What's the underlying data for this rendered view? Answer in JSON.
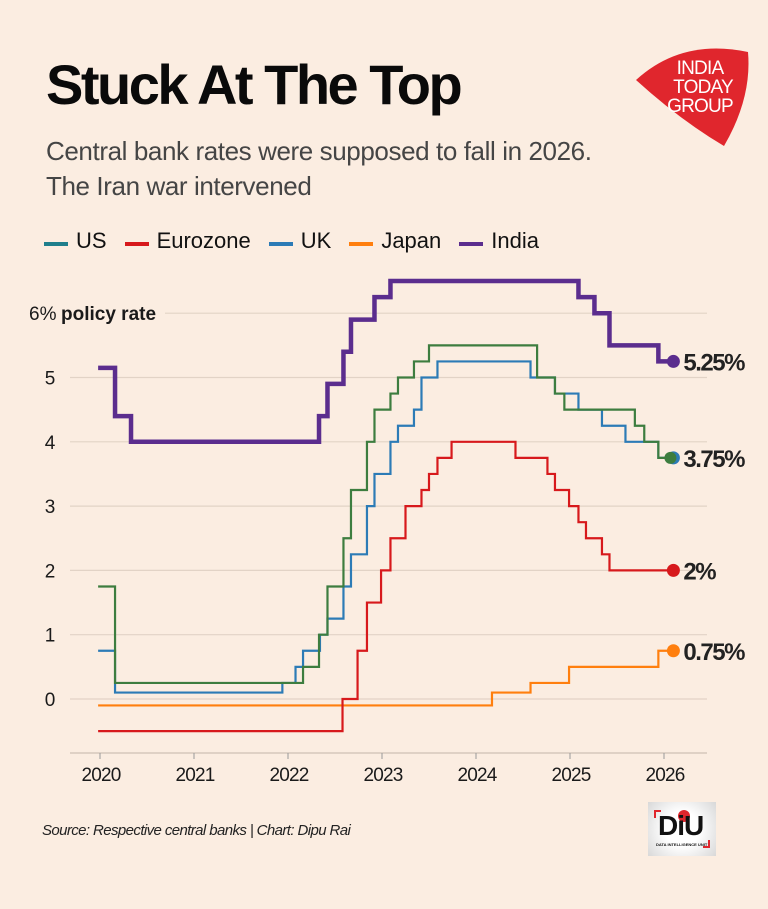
{
  "header": {
    "title": "Stuck At The Top",
    "subtitle_line1": "Central bank rates were supposed to fall in 2026.",
    "subtitle_line2": "The Iran war intervened",
    "logo_lines": [
      "INDIA",
      "TODAY",
      "GROUP"
    ],
    "logo_color": "#e0262d"
  },
  "footer": {
    "source": "Source: Respective central banks | Chart: Dipu Rai",
    "badge_text": "DiU",
    "badge_subtext": "DATA INTELLIGENCE UNIT"
  },
  "chart_data": {
    "type": "line",
    "step": true,
    "title": "Stuck At The Top",
    "ylabel": "6% policy rate",
    "xlabel": "",
    "xlim": [
      2019.9,
      2026.5
    ],
    "ylim": [
      -0.8,
      6.6
    ],
    "x_ticks": [
      2020,
      2021,
      2022,
      2023,
      2024,
      2025,
      2026
    ],
    "x_tick_labels": [
      "2020",
      "2021",
      "2022",
      "2023",
      "2024",
      "2025",
      "2026"
    ],
    "y_ticks": [
      0,
      1,
      2,
      3,
      4,
      5,
      6
    ],
    "y_tick_labels": [
      "0",
      "1",
      "2",
      "3",
      "4",
      "5",
      "6%"
    ],
    "y_top_label_suffix": "policy rate",
    "grid": true,
    "legend_position": "top-left",
    "legend": [
      {
        "name": "US",
        "color": "#1f7f8c"
      },
      {
        "name": "Eurozone",
        "color": "#d7191c"
      },
      {
        "name": "UK",
        "color": "#2c7bb6"
      },
      {
        "name": "Japan",
        "color": "#ff7f0e"
      },
      {
        "name": "India",
        "color": "#5b2d8e"
      }
    ],
    "series": [
      {
        "name": "India",
        "color": "#5b2d8e",
        "line_color": "#5b2d8e",
        "width": "thick",
        "end_label": "5.25%",
        "end_x": 2026.1,
        "steps": [
          [
            2019.98,
            5.15
          ],
          [
            2020.16,
            4.4
          ],
          [
            2020.33,
            4.0
          ],
          [
            2022.33,
            4.4
          ],
          [
            2022.42,
            4.9
          ],
          [
            2022.59,
            5.4
          ],
          [
            2022.67,
            5.9
          ],
          [
            2022.92,
            6.25
          ],
          [
            2023.09,
            6.5
          ],
          [
            2025.09,
            6.25
          ],
          [
            2025.26,
            6.0
          ],
          [
            2025.42,
            5.5
          ],
          [
            2025.94,
            5.25
          ]
        ]
      },
      {
        "name": "US",
        "color": "#1f7f8c",
        "line_color": "#3d7d3f",
        "width": "thin",
        "end_label": "3.75%",
        "end_x": 2026.1,
        "steps": [
          [
            2019.98,
            1.75
          ],
          [
            2020.16,
            0.25
          ],
          [
            2022.16,
            0.5
          ],
          [
            2022.33,
            1.0
          ],
          [
            2022.42,
            1.75
          ],
          [
            2022.59,
            2.5
          ],
          [
            2022.67,
            3.25
          ],
          [
            2022.84,
            4.0
          ],
          [
            2022.92,
            4.5
          ],
          [
            2023.09,
            4.75
          ],
          [
            2023.17,
            5.0
          ],
          [
            2023.34,
            5.25
          ],
          [
            2023.5,
            5.5
          ],
          [
            2024.65,
            5.0
          ],
          [
            2024.84,
            4.75
          ],
          [
            2024.94,
            4.5
          ],
          [
            2025.69,
            4.25
          ],
          [
            2025.79,
            4.0
          ],
          [
            2025.94,
            3.75
          ]
        ]
      },
      {
        "name": "UK",
        "color": "#2c7bb6",
        "line_color": "#2c7bb6",
        "width": "thin",
        "end_label": "3.75%",
        "end_x": 2026.1,
        "steps": [
          [
            2019.98,
            0.75
          ],
          [
            2020.16,
            0.1
          ],
          [
            2021.94,
            0.25
          ],
          [
            2022.08,
            0.5
          ],
          [
            2022.16,
            0.75
          ],
          [
            2022.34,
            1.0
          ],
          [
            2022.42,
            1.25
          ],
          [
            2022.59,
            1.75
          ],
          [
            2022.67,
            2.25
          ],
          [
            2022.84,
            3.0
          ],
          [
            2022.92,
            3.5
          ],
          [
            2023.09,
            4.0
          ],
          [
            2023.17,
            4.25
          ],
          [
            2023.34,
            4.5
          ],
          [
            2023.42,
            5.0
          ],
          [
            2023.59,
            5.25
          ],
          [
            2024.58,
            5.0
          ],
          [
            2024.84,
            4.75
          ],
          [
            2025.09,
            4.5
          ],
          [
            2025.34,
            4.25
          ],
          [
            2025.59,
            4.0
          ],
          [
            2025.94,
            3.75
          ]
        ]
      },
      {
        "name": "Eurozone",
        "color": "#d7191c",
        "line_color": "#d7191c",
        "width": "thin",
        "end_label": "2%",
        "end_x": 2026.1,
        "steps": [
          [
            2019.98,
            -0.5
          ],
          [
            2020.0,
            -0.5
          ],
          [
            2022.58,
            0.0
          ],
          [
            2022.74,
            0.75
          ],
          [
            2022.84,
            1.5
          ],
          [
            2022.99,
            2.0
          ],
          [
            2023.09,
            2.5
          ],
          [
            2023.25,
            3.0
          ],
          [
            2023.42,
            3.25
          ],
          [
            2023.5,
            3.5
          ],
          [
            2023.59,
            3.75
          ],
          [
            2023.74,
            4.0
          ],
          [
            2024.42,
            3.75
          ],
          [
            2024.76,
            3.5
          ],
          [
            2024.84,
            3.25
          ],
          [
            2024.99,
            3.0
          ],
          [
            2025.09,
            2.75
          ],
          [
            2025.17,
            2.5
          ],
          [
            2025.34,
            2.25
          ],
          [
            2025.42,
            2.0
          ]
        ]
      },
      {
        "name": "Japan",
        "color": "#ff7f0e",
        "line_color": "#ff7f0e",
        "width": "thin",
        "end_label": "0.75%",
        "end_x": 2026.1,
        "steps": [
          [
            2019.98,
            -0.1
          ],
          [
            2024.17,
            0.1
          ],
          [
            2024.58,
            0.25
          ],
          [
            2024.99,
            0.5
          ],
          [
            2025.94,
            0.75
          ]
        ]
      }
    ]
  }
}
